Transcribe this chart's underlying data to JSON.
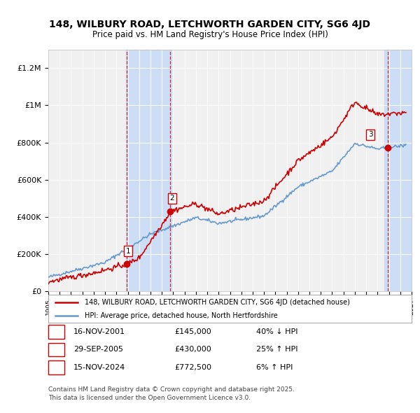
{
  "title": "148, WILBURY ROAD, LETCHWORTH GARDEN CITY, SG6 4JD",
  "subtitle": "Price paid vs. HM Land Registry's House Price Index (HPI)",
  "ylabel_ticks": [
    0,
    200000,
    400000,
    600000,
    800000,
    1000000,
    1200000
  ],
  "ylabel_labels": [
    "£0",
    "£200K",
    "£400K",
    "£600K",
    "£800K",
    "£1M",
    "£1.2M"
  ],
  "ylim": [
    0,
    1300000
  ],
  "xlim_start": 1995,
  "xlim_end": 2027,
  "transactions": [
    {
      "num": 1,
      "date": "16-NOV-2001",
      "year": 2001.88,
      "price": 145000,
      "pct": "40%",
      "dir": "↓",
      "label": "1"
    },
    {
      "num": 2,
      "date": "29-SEP-2005",
      "year": 2005.75,
      "price": 430000,
      "pct": "25%",
      "dir": "↑",
      "label": "2"
    },
    {
      "num": 3,
      "date": "15-NOV-2024",
      "year": 2024.88,
      "price": 772500,
      "pct": "6%",
      "dir": "↑",
      "label": "3"
    }
  ],
  "legend_red": "148, WILBURY ROAD, LETCHWORTH GARDEN CITY, SG6 4JD (detached house)",
  "legend_blue": "HPI: Average price, detached house, North Hertfordshire",
  "footer": "Contains HM Land Registry data © Crown copyright and database right 2025.\nThis data is licensed under the Open Government Licence v3.0.",
  "table_rows": [
    {
      "num": "1",
      "date": "16-NOV-2001",
      "price": "£145,000",
      "pct": "40% ↓ HPI"
    },
    {
      "num": "2",
      "date": "29-SEP-2005",
      "price": "£430,000",
      "pct": "25% ↑ HPI"
    },
    {
      "num": "3",
      "date": "15-NOV-2024",
      "price": "£772,500",
      "pct": "6% ↑ HPI"
    }
  ],
  "red_color": "#cc0000",
  "blue_color": "#6699cc",
  "bg_color": "#ffffff",
  "plot_bg": "#f0f0f0",
  "highlight_bg": "#ccddf5",
  "dashed_color": "#cc0000"
}
